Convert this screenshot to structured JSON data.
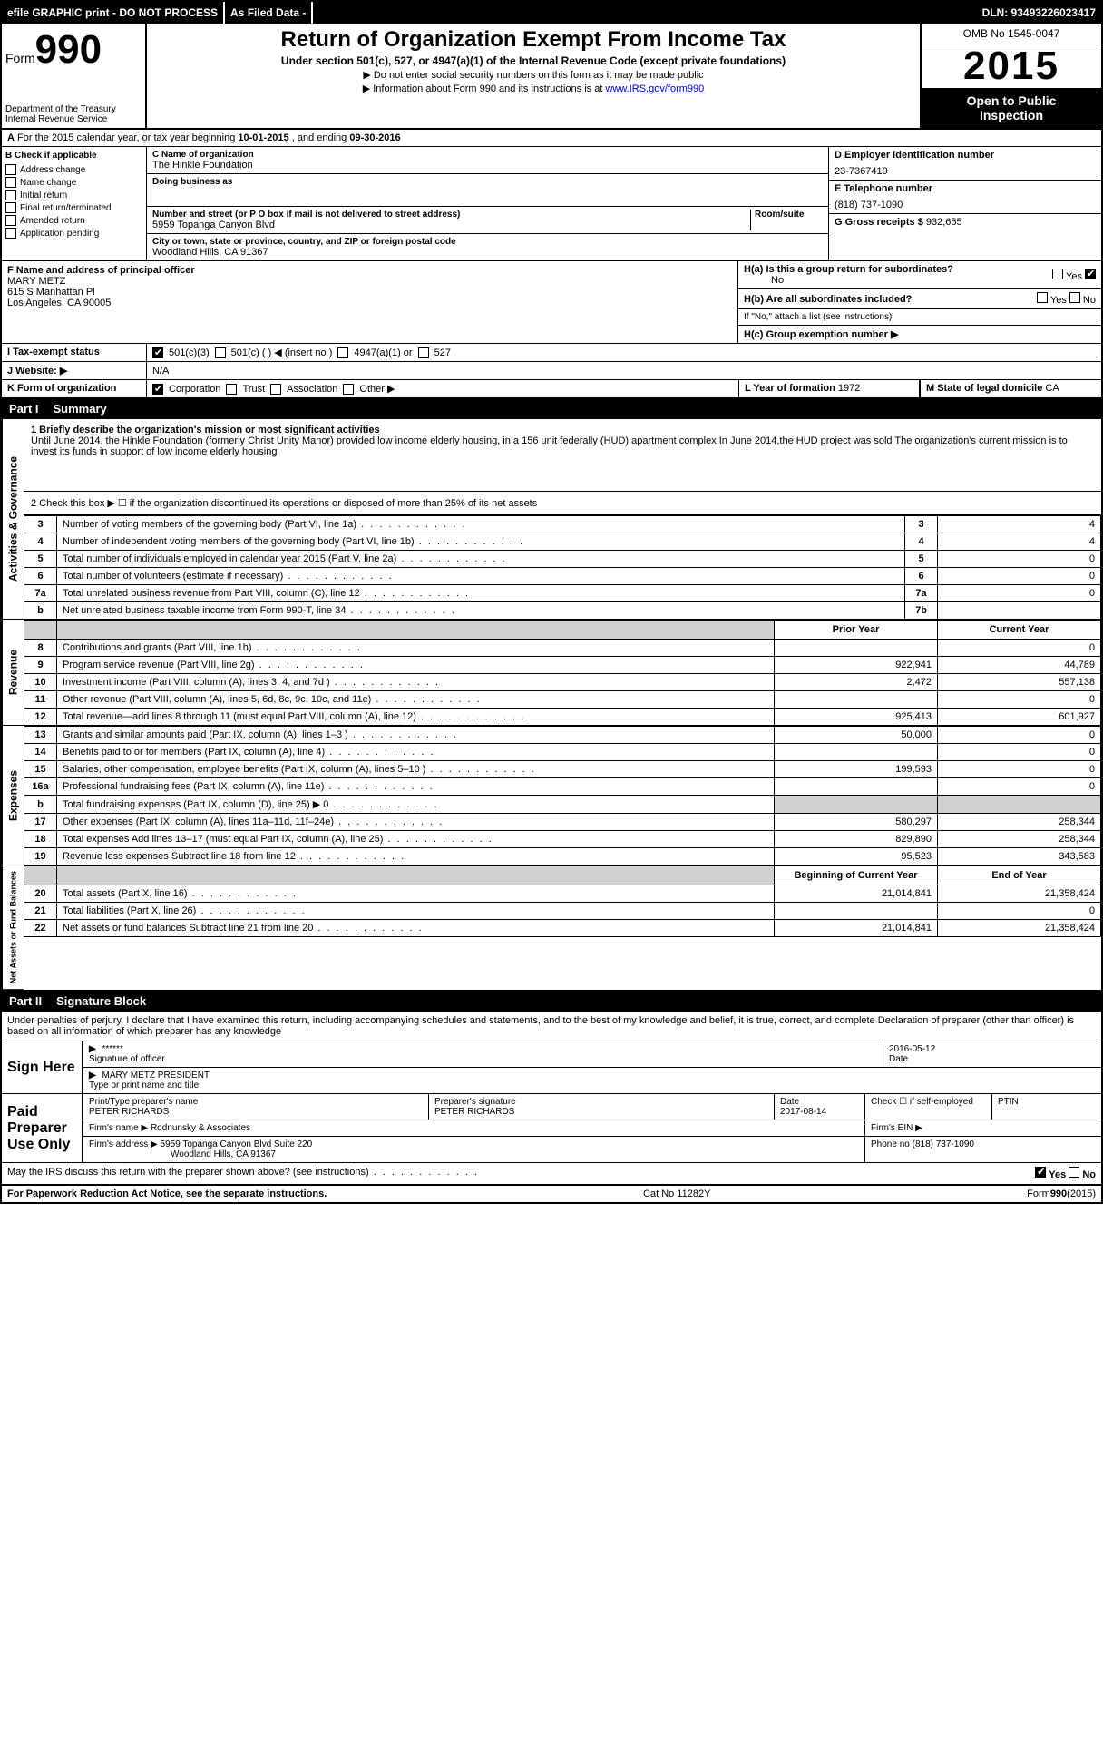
{
  "topbar": {
    "efile": "efile GRAPHIC print - DO NOT PROCESS",
    "asfiled": "As Filed Data -",
    "dln": "DLN: 93493226023417"
  },
  "header": {
    "form_prefix": "Form",
    "form_num": "990",
    "dept1": "Department of the Treasury",
    "dept2": "Internal Revenue Service",
    "title": "Return of Organization Exempt From Income Tax",
    "subtitle": "Under section 501(c), 527, or 4947(a)(1) of the Internal Revenue Code (except private foundations)",
    "note1": "▶ Do not enter social security numbers on this form as it may be made public",
    "note2_pre": "▶ Information about Form 990 and its instructions is at ",
    "note2_link": "www.IRS.gov/form990",
    "omb": "OMB No 1545-0047",
    "year": "2015",
    "open1": "Open to Public",
    "open2": "Inspection"
  },
  "rowA": {
    "label": "A",
    "text_pre": "For the 2015 calendar year, or tax year beginning ",
    "begin": "10-01-2015",
    "mid": " , and ending ",
    "end": "09-30-2016"
  },
  "colB": {
    "label": "B Check if applicable",
    "items": [
      "Address change",
      "Name change",
      "Initial return",
      "Final return/terminated",
      "Amended return",
      "Application pending"
    ]
  },
  "colC": {
    "name_label": "C Name of organization",
    "name": "The Hinkle Foundation",
    "dba_label": "Doing business as",
    "dba": "",
    "addr_label": "Number and street (or P O box if mail is not delivered to street address)",
    "room_label": "Room/suite",
    "addr": "5959 Topanga Canyon Blvd",
    "city_label": "City or town, state or province, country, and ZIP or foreign postal code",
    "city": "Woodland Hills, CA 91367"
  },
  "colD": {
    "ein_label": "D Employer identification number",
    "ein": "23-7367419",
    "phone_label": "E Telephone number",
    "phone": "(818) 737-1090",
    "gross_label": "G Gross receipts $",
    "gross": "932,655"
  },
  "rowF": {
    "label": "F Name and address of principal officer",
    "name": "MARY METZ",
    "addr1": "615 S Manhattan Pl",
    "addr2": "Los Angeles, CA 90005"
  },
  "rowH": {
    "ha_label": "H(a) Is this a group return for subordinates?",
    "ha_no": "No",
    "hb_label": "H(b) Are all subordinates included?",
    "hb_note": "If \"No,\" attach a list (see instructions)",
    "hc_label": "H(c) Group exemption number ▶"
  },
  "rowI": {
    "label": "I Tax-exempt status",
    "opts": [
      "501(c)(3)",
      "501(c) ( ) ◀ (insert no )",
      "4947(a)(1) or",
      "527"
    ]
  },
  "rowJ": {
    "label": "J Website: ▶",
    "val": "N/A"
  },
  "rowK": {
    "label": "K Form of organization",
    "opts": [
      "Corporation",
      "Trust",
      "Association",
      "Other ▶"
    ]
  },
  "rowL": {
    "label": "L Year of formation",
    "val": "1972"
  },
  "rowM": {
    "label": "M State of legal domicile",
    "val": "CA"
  },
  "part1": {
    "header_num": "Part I",
    "header_text": "Summary",
    "line1_label": "1 Briefly describe the organization's mission or most significant activities",
    "line1_text": "Until June 2014, the Hinkle Foundation (formerly Christ Unity Manor) provided low income elderly housing, in a 156 unit federally (HUD) apartment complex In June 2014,the HUD project was sold The organization's current mission is to invest its funds in support of low income elderly housing",
    "line2": "2 Check this box ▶ ☐ if the organization discontinued its operations or disposed of more than 25% of its net assets",
    "side_labels": {
      "act_gov": "Activities & Governance",
      "revenue": "Revenue",
      "expenses": "Expenses",
      "net": "Net Assets or Fund Balances"
    },
    "gov_lines": [
      {
        "n": "3",
        "d": "Number of voting members of the governing body (Part VI, line 1a)",
        "b": "3",
        "v": "4"
      },
      {
        "n": "4",
        "d": "Number of independent voting members of the governing body (Part VI, line 1b)",
        "b": "4",
        "v": "4"
      },
      {
        "n": "5",
        "d": "Total number of individuals employed in calendar year 2015 (Part V, line 2a)",
        "b": "5",
        "v": "0"
      },
      {
        "n": "6",
        "d": "Total number of volunteers (estimate if necessary)",
        "b": "6",
        "v": "0"
      },
      {
        "n": "7a",
        "d": "Total unrelated business revenue from Part VIII, column (C), line 12",
        "b": "7a",
        "v": "0"
      },
      {
        "n": "b",
        "d": "Net unrelated business taxable income from Form 990-T, line 34",
        "b": "7b",
        "v": ""
      }
    ],
    "col_headers": {
      "py": "Prior Year",
      "cy": "Current Year"
    },
    "rev_lines": [
      {
        "n": "8",
        "d": "Contributions and grants (Part VIII, line 1h)",
        "py": "",
        "cy": "0"
      },
      {
        "n": "9",
        "d": "Program service revenue (Part VIII, line 2g)",
        "py": "922,941",
        "cy": "44,789"
      },
      {
        "n": "10",
        "d": "Investment income (Part VIII, column (A), lines 3, 4, and 7d )",
        "py": "2,472",
        "cy": "557,138"
      },
      {
        "n": "11",
        "d": "Other revenue (Part VIII, column (A), lines 5, 6d, 8c, 9c, 10c, and 11e)",
        "py": "",
        "cy": "0"
      },
      {
        "n": "12",
        "d": "Total revenue—add lines 8 through 11 (must equal Part VIII, column (A), line 12)",
        "py": "925,413",
        "cy": "601,927"
      }
    ],
    "exp_lines": [
      {
        "n": "13",
        "d": "Grants and similar amounts paid (Part IX, column (A), lines 1–3 )",
        "py": "50,000",
        "cy": "0"
      },
      {
        "n": "14",
        "d": "Benefits paid to or for members (Part IX, column (A), line 4)",
        "py": "",
        "cy": "0"
      },
      {
        "n": "15",
        "d": "Salaries, other compensation, employee benefits (Part IX, column (A), lines 5–10 )",
        "py": "199,593",
        "cy": "0"
      },
      {
        "n": "16a",
        "d": "Professional fundraising fees (Part IX, column (A), line 11e)",
        "py": "",
        "cy": "0"
      },
      {
        "n": "b",
        "d": "Total fundraising expenses (Part IX, column (D), line 25) ▶ 0",
        "py": "shade",
        "cy": "shade"
      },
      {
        "n": "17",
        "d": "Other expenses (Part IX, column (A), lines 11a–11d, 11f–24e)",
        "py": "580,297",
        "cy": "258,344"
      },
      {
        "n": "18",
        "d": "Total expenses Add lines 13–17 (must equal Part IX, column (A), line 25)",
        "py": "829,890",
        "cy": "258,344"
      },
      {
        "n": "19",
        "d": "Revenue less expenses Subtract line 18 from line 12",
        "py": "95,523",
        "cy": "343,583"
      }
    ],
    "net_headers": {
      "by": "Beginning of Current Year",
      "ey": "End of Year"
    },
    "net_lines": [
      {
        "n": "20",
        "d": "Total assets (Part X, line 16)",
        "by": "21,014,841",
        "ey": "21,358,424"
      },
      {
        "n": "21",
        "d": "Total liabilities (Part X, line 26)",
        "by": "",
        "ey": "0"
      },
      {
        "n": "22",
        "d": "Net assets or fund balances Subtract line 21 from line 20",
        "by": "21,014,841",
        "ey": "21,358,424"
      }
    ]
  },
  "part2": {
    "header_num": "Part II",
    "header_text": "Signature Block",
    "intro": "Under penalties of perjury, I declare that I have examined this return, including accompanying schedules and statements, and to the best of my knowledge and belief, it is true, correct, and complete Declaration of preparer (other than officer) is based on all information of which preparer has any knowledge",
    "sign_here": "Sign Here",
    "sig_stars": "******",
    "sig_officer_label": "Signature of officer",
    "sig_date": "2016-05-12",
    "sig_date_label": "Date",
    "sig_name": "MARY METZ PRESIDENT",
    "sig_name_label": "Type or print name and title",
    "paid_label": "Paid Preparer Use Only",
    "prep_name_label": "Print/Type preparer's name",
    "prep_name": "PETER RICHARDS",
    "prep_sig_label": "Preparer's signature",
    "prep_sig": "PETER RICHARDS",
    "prep_date_label": "Date",
    "prep_date": "2017-08-14",
    "self_emp": "Check ☐ if self-employed",
    "ptin": "PTIN",
    "firm_name_label": "Firm's name ▶",
    "firm_name": "Rodnunsky & Associates",
    "firm_ein": "Firm's EIN ▶",
    "firm_addr_label": "Firm's address ▶",
    "firm_addr": "5959 Topanga Canyon Blvd Suite 220",
    "firm_addr2": "Woodland Hills, CA 91367",
    "firm_phone_label": "Phone no",
    "firm_phone": "(818) 737-1090",
    "discuss": "May the IRS discuss this return with the preparer shown above? (see instructions)",
    "yes": "Yes",
    "no": "No"
  },
  "footer": {
    "paperwork": "For Paperwork Reduction Act Notice, see the separate instructions.",
    "cat": "Cat No 11282Y",
    "form": "Form 990 (2015)"
  }
}
